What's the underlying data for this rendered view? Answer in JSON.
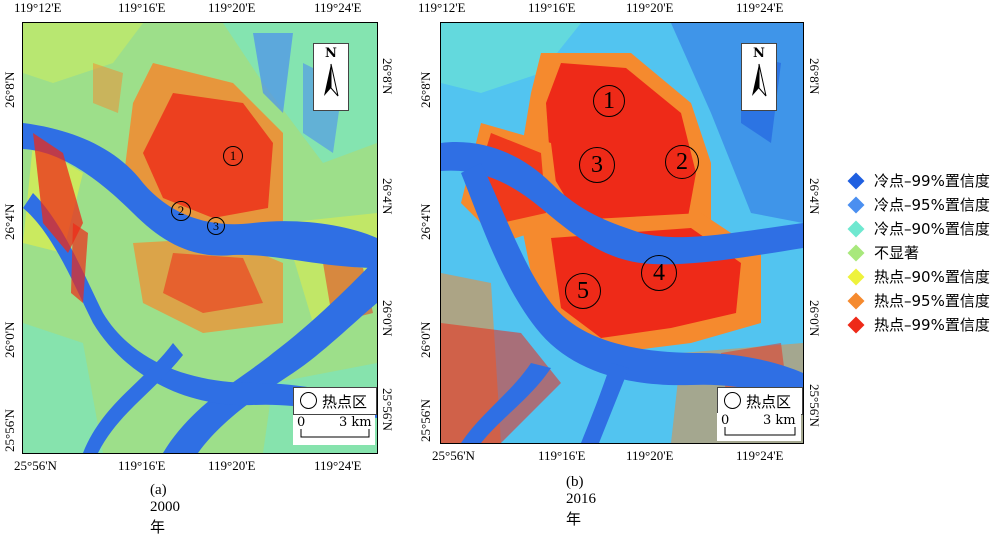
{
  "colors": {
    "cold99": "#1f5fe0",
    "cold95": "#4b8ff0",
    "cold90": "#6fe8d0",
    "not_sig": "#a8e87c",
    "hot90": "#eef23c",
    "hot95": "#f58a2e",
    "hot99": "#ee2a18",
    "river": "#2f6fe4",
    "bg_2000": "#9ddf8a",
    "bg_2016": "#52c4f0"
  },
  "panels": [
    {
      "caption": "(a) 2000年",
      "top_ticks": [
        "119°12'E",
        "119°16'E",
        "119°20'E",
        "119°24'E"
      ],
      "bottom_ticks": [
        "25°56'N",
        "119°16'E",
        "119°20'E",
        "119°24'E"
      ],
      "left_ticks": [
        "26°8'N",
        "26°4'N",
        "26°0'N",
        "25°56'N"
      ],
      "right_ticks": [
        "26°8'N",
        "26°4'N",
        "26°0'N",
        "25°56'N"
      ],
      "north_label": "N",
      "hotspot_legend": "热点区",
      "scale_zero": "0",
      "scale_label": "3 km",
      "markers": [
        "1",
        "2",
        "3"
      ]
    },
    {
      "caption": "(b) 2016年",
      "top_ticks": [
        "119°12'E",
        "119°16'E",
        "119°20'E",
        "119°24'E"
      ],
      "bottom_ticks": [
        "25°56'N",
        "119°16'E",
        "119°20'E",
        "119°24'E"
      ],
      "left_ticks": [
        "26°8'N",
        "26°4'N",
        "26°0'N",
        "25°56'N"
      ],
      "right_ticks": [
        "26°8'N",
        "26°4'N",
        "26°0'N",
        "25°56'N"
      ],
      "north_label": "N",
      "hotspot_legend": "热点区",
      "scale_zero": "0",
      "scale_label": "3 km",
      "markers": [
        "1",
        "2",
        "3",
        "4",
        "5"
      ]
    }
  ],
  "legend": [
    {
      "label": "冷点–99%置信度",
      "color": "#1f5fe0"
    },
    {
      "label": "冷点–95%置信度",
      "color": "#4b8ff0"
    },
    {
      "label": "冷点–90%置信度",
      "color": "#6fe8d0"
    },
    {
      "label": "不显著",
      "color": "#a8e87c"
    },
    {
      "label": "热点–90%置信度",
      "color": "#eef23c"
    },
    {
      "label": "热点–95%置信度",
      "color": "#f58a2e"
    },
    {
      "label": "热点–99%置信度",
      "color": "#ee2a18"
    }
  ]
}
